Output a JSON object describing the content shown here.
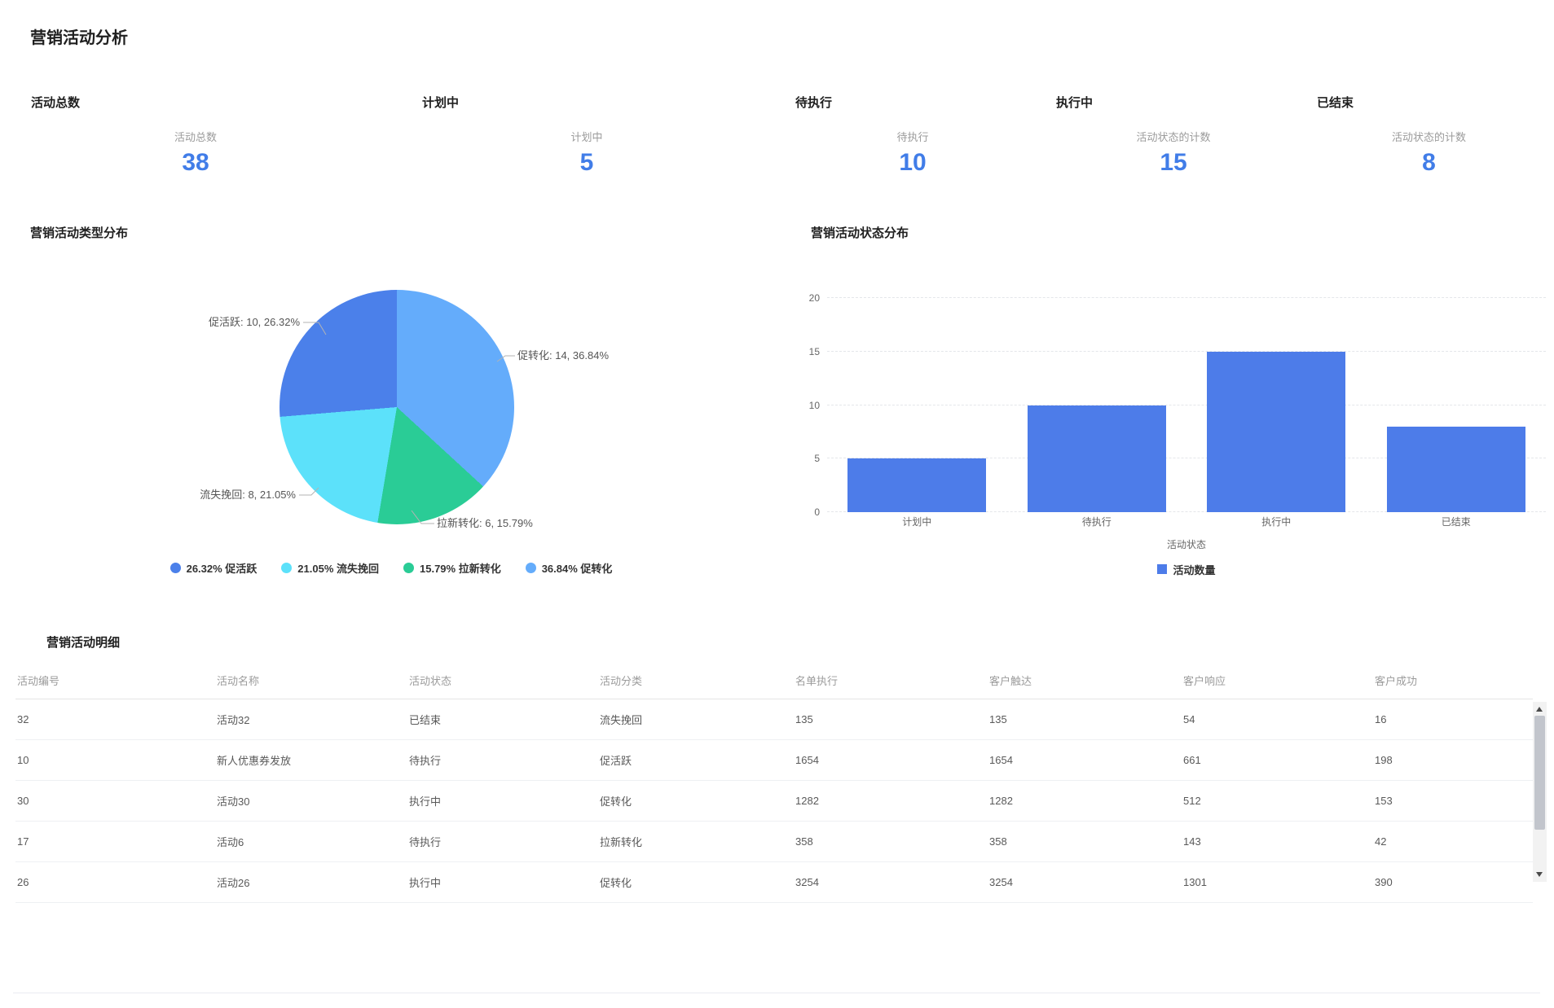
{
  "page": {
    "title": "营销活动分析"
  },
  "kpis": [
    {
      "title": "活动总数",
      "label": "活动总数",
      "value": "38"
    },
    {
      "title": "计划中",
      "label": "计划中",
      "value": "5"
    },
    {
      "title": "待执行",
      "label": "待执行",
      "value": "10"
    },
    {
      "title": "执行中",
      "label": "活动状态的计数",
      "value": "15"
    },
    {
      "title": "已结束",
      "label": "活动状态的计数",
      "value": "8"
    }
  ],
  "pie_panel": {
    "title": "营销活动类型分布",
    "labels": [
      "促活跃: 10, 26.32%",
      "促转化: 14, 36.84%",
      "流失挽回: 8, 21.05%",
      "拉新转化: 6, 15.79%"
    ],
    "legend": [
      {
        "text": "26.32% 促活跃",
        "color": "#4b80ea"
      },
      {
        "text": "21.05% 流失挽回",
        "color": "#5ce1fa"
      },
      {
        "text": "15.79% 拉新转化",
        "color": "#2acc96"
      },
      {
        "text": "36.84% 促转化",
        "color": "#64acfb"
      }
    ]
  },
  "bar_panel": {
    "title": "营销活动状态分布",
    "xlabel": "活动状态",
    "legend": "活动数量"
  },
  "chart_data": [
    {
      "type": "pie",
      "title": "营销活动类型分布",
      "series": [
        {
          "name": "促转化",
          "value": 14,
          "pct": 36.84,
          "color": "#64acfb"
        },
        {
          "name": "拉新转化",
          "value": 6,
          "pct": 15.79,
          "color": "#2acc96"
        },
        {
          "name": "流失挽回",
          "value": 8,
          "pct": 21.05,
          "color": "#5ce1fa"
        },
        {
          "name": "促活跃",
          "value": 10,
          "pct": 26.32,
          "color": "#4b80ea"
        }
      ],
      "legend_position": "bottom"
    },
    {
      "type": "bar",
      "title": "营销活动状态分布",
      "categories": [
        "计划中",
        "待执行",
        "执行中",
        "已结束"
      ],
      "values": [
        5,
        10,
        15,
        8
      ],
      "yticks": [
        0,
        5,
        10,
        15,
        20
      ],
      "ylim": [
        0,
        20
      ],
      "xlabel": "活动状态",
      "legend": "活动数量",
      "bar_color": "#4d7ce9",
      "grid": "dashed"
    }
  ],
  "table": {
    "title": "营销活动明细",
    "columns": [
      "活动编号",
      "活动名称",
      "活动状态",
      "活动分类",
      "名单执行",
      "客户触达",
      "客户响应",
      "客户成功"
    ],
    "rows": [
      [
        "32",
        "活动32",
        "已结束",
        "流失挽回",
        "135",
        "135",
        "54",
        "16"
      ],
      [
        "10",
        "新人优惠券发放",
        "待执行",
        "促活跃",
        "1654",
        "1654",
        "661",
        "198"
      ],
      [
        "30",
        "活动30",
        "执行中",
        "促转化",
        "1282",
        "1282",
        "512",
        "153"
      ],
      [
        "17",
        "活动6",
        "待执行",
        "拉新转化",
        "358",
        "358",
        "143",
        "42"
      ],
      [
        "26",
        "活动26",
        "执行中",
        "促转化",
        "3254",
        "3254",
        "1301",
        "390"
      ]
    ]
  }
}
